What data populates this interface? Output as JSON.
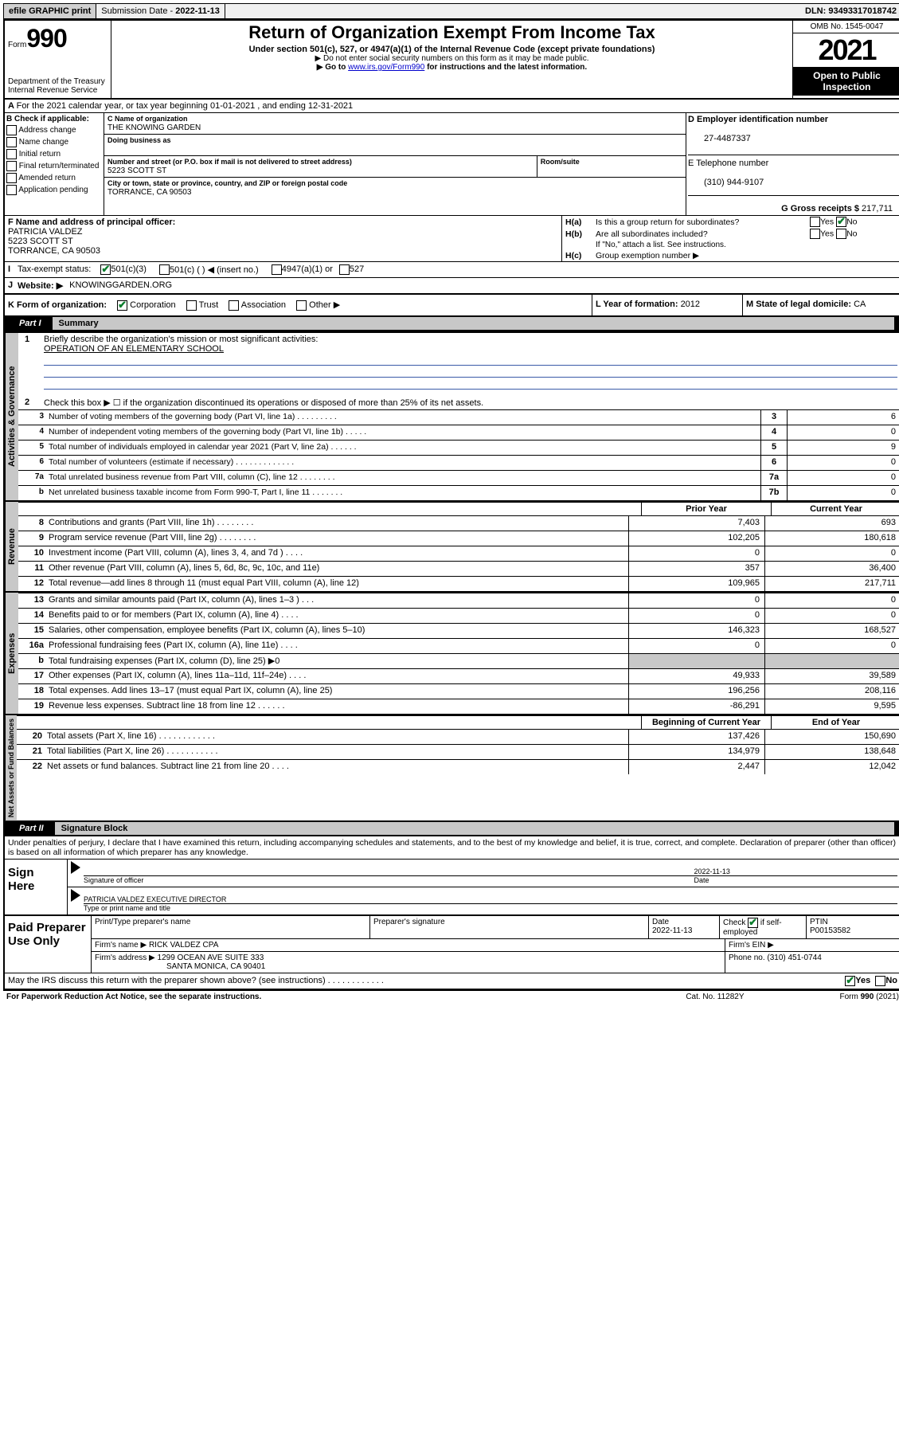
{
  "topbar": {
    "efile": "efile GRAPHIC print",
    "subm_lbl": "Submission Date - ",
    "subm_date": "2022-11-13",
    "dln_lbl": "DLN: ",
    "dln": "93493317018742"
  },
  "header": {
    "form_word": "Form",
    "form_num": "990",
    "dept": "Department of the Treasury Internal Revenue Service",
    "title": "Return of Organization Exempt From Income Tax",
    "sub1": "Under section 501(c), 527, or 4947(a)(1) of the Internal Revenue Code (except private foundations)",
    "sub2": "▶ Do not enter social security numbers on this form as it may be made public.",
    "sub3_a": "▶ Go to ",
    "sub3_link": "www.irs.gov/Form990",
    "sub3_b": " for instructions and the latest information.",
    "omb": "OMB No. 1545-0047",
    "year": "2021",
    "open": "Open to Public Inspection"
  },
  "A": {
    "text": "For the 2021 calendar year, or tax year beginning 01-01-2021   , and ending 12-31-2021"
  },
  "B": {
    "lbl": "B Check if applicable:",
    "opts": [
      "Address change",
      "Name change",
      "Initial return",
      "Final return/terminated",
      "Amended return",
      "Application pending"
    ]
  },
  "C": {
    "name_lbl": "C Name of organization",
    "name": "THE KNOWING GARDEN",
    "dba_lbl": "Doing business as",
    "addr_lbl": "Number and street (or P.O. box if mail is not delivered to street address)",
    "room_lbl": "Room/suite",
    "addr": "5223 SCOTT ST",
    "city_lbl": "City or town, state or province, country, and ZIP or foreign postal code",
    "city": "TORRANCE, CA  90503"
  },
  "D": {
    "lbl": "D Employer identification number",
    "val": "27-4487337"
  },
  "E": {
    "lbl": "E Telephone number",
    "val": "(310) 944-9107"
  },
  "G": {
    "lbl": "G Gross receipts $ ",
    "val": "217,711"
  },
  "F": {
    "lbl": "F  Name and address of principal officer:",
    "name": "PATRICIA VALDEZ",
    "addr1": "5223 SCOTT ST",
    "addr2": "TORRANCE, CA  90503"
  },
  "H": {
    "a": "Is this a group return for subordinates?",
    "b": "Are all subordinates included?",
    "b_note": "If \"No,\" attach a list. See instructions.",
    "c": "Group exemption number ▶",
    "yes": "Yes",
    "no": "No"
  },
  "I": {
    "lbl": "Tax-exempt status:",
    "o1": "501(c)(3)",
    "o2": "501(c) (  ) ◀ (insert no.)",
    "o3": "4947(a)(1) or",
    "o4": "527"
  },
  "J": {
    "lbl": "Website: ▶",
    "val": "KNOWINGGARDEN.ORG"
  },
  "K": {
    "lbl": "K Form of organization:",
    "o1": "Corporation",
    "o2": "Trust",
    "o3": "Association",
    "o4": "Other ▶"
  },
  "L": {
    "lbl": "L Year of formation: ",
    "val": "2012"
  },
  "M": {
    "lbl": "M State of legal domicile: ",
    "val": "CA"
  },
  "partI": {
    "num": "Part I",
    "title": "Summary"
  },
  "summary": {
    "q1": "Briefly describe the organization's mission or most significant activities:",
    "q1v": "OPERATION OF AN ELEMENTARY SCHOOL",
    "q2": "Check this box ▶ ☐  if the organization discontinued its operations or disposed of more than 25% of its net assets.",
    "lines": [
      {
        "n": "3",
        "t": "Number of voting members of the governing body (Part VI, line 1a)  .   .   .   .   .   .   .   .   .",
        "k": "3",
        "v": "6"
      },
      {
        "n": "4",
        "t": "Number of independent voting members of the governing body (Part VI, line 1b)   .   .   .   .   .",
        "k": "4",
        "v": "0"
      },
      {
        "n": "5",
        "t": "Total number of individuals employed in calendar year 2021 (Part V, line 2a)   .   .   .   .   .   .",
        "k": "5",
        "v": "9"
      },
      {
        "n": "6",
        "t": "Total number of volunteers (estimate if necessary)   .   .   .   .   .   .   .   .   .   .   .   .   .",
        "k": "6",
        "v": "0"
      },
      {
        "n": "7a",
        "t": "Total unrelated business revenue from Part VIII, column (C), line 12   .   .   .   .   .   .   .   .",
        "k": "7a",
        "v": "0"
      },
      {
        "n": "b",
        "t": "Net unrelated business taxable income from Form 990-T, Part I, line 11   .   .   .   .   .   .   .",
        "k": "7b",
        "v": "0"
      }
    ]
  },
  "cols": {
    "prior": "Prior Year",
    "curr": "Current Year",
    "boc": "Beginning of Current Year",
    "eoy": "End of Year"
  },
  "rev": [
    {
      "n": "8",
      "t": "Contributions and grants (Part VIII, line 1h)   .   .   .   .   .   .   .   .",
      "p": "7,403",
      "c": "693"
    },
    {
      "n": "9",
      "t": "Program service revenue (Part VIII, line 2g)   .   .   .   .   .   .   .   .",
      "p": "102,205",
      "c": "180,618"
    },
    {
      "n": "10",
      "t": "Investment income (Part VIII, column (A), lines 3, 4, and 7d )   .   .   .   .",
      "p": "0",
      "c": "0"
    },
    {
      "n": "11",
      "t": "Other revenue (Part VIII, column (A), lines 5, 6d, 8c, 9c, 10c, and 11e)",
      "p": "357",
      "c": "36,400"
    },
    {
      "n": "12",
      "t": "Total revenue—add lines 8 through 11 (must equal Part VIII, column (A), line 12)",
      "p": "109,965",
      "c": "217,711"
    }
  ],
  "exp": [
    {
      "n": "13",
      "t": "Grants and similar amounts paid (Part IX, column (A), lines 1–3 )   .   .   .",
      "p": "0",
      "c": "0"
    },
    {
      "n": "14",
      "t": "Benefits paid to or for members (Part IX, column (A), line 4)   .   .   .   .",
      "p": "0",
      "c": "0"
    },
    {
      "n": "15",
      "t": "Salaries, other compensation, employee benefits (Part IX, column (A), lines 5–10)",
      "p": "146,323",
      "c": "168,527"
    },
    {
      "n": "16a",
      "t": "Professional fundraising fees (Part IX, column (A), line 11e)   .   .   .   .",
      "p": "0",
      "c": "0"
    },
    {
      "n": "b",
      "t": "Total fundraising expenses (Part IX, column (D), line 25) ▶0",
      "p": "",
      "c": "",
      "shade": true
    },
    {
      "n": "17",
      "t": "Other expenses (Part IX, column (A), lines 11a–11d, 11f–24e)   .   .   .   .",
      "p": "49,933",
      "c": "39,589"
    },
    {
      "n": "18",
      "t": "Total expenses. Add lines 13–17 (must equal Part IX, column (A), line 25)",
      "p": "196,256",
      "c": "208,116"
    },
    {
      "n": "19",
      "t": "Revenue less expenses. Subtract line 18 from line 12   .   .   .   .   .   .",
      "p": "-86,291",
      "c": "9,595"
    }
  ],
  "net": [
    {
      "n": "20",
      "t": "Total assets (Part X, line 16)   .   .   .   .   .   .   .   .   .   .   .   .",
      "p": "137,426",
      "c": "150,690"
    },
    {
      "n": "21",
      "t": "Total liabilities (Part X, line 26)   .   .   .   .   .   .   .   .   .   .   .",
      "p": "134,979",
      "c": "138,648"
    },
    {
      "n": "22",
      "t": "Net assets or fund balances. Subtract line 21 from line 20   .   .   .   .",
      "p": "2,447",
      "c": "12,042"
    }
  ],
  "sidelbl": {
    "gov": "Activities & Governance",
    "rev": "Revenue",
    "exp": "Expenses",
    "net": "Net Assets or Fund Balances"
  },
  "partII": {
    "num": "Part II",
    "title": "Signature Block"
  },
  "sig": {
    "decl": "Under penalties of perjury, I declare that I have examined this return, including accompanying schedules and statements, and to the best of my knowledge and belief, it is true, correct, and complete. Declaration of preparer (other than officer) is based on all information of which preparer has any knowledge.",
    "sign_here": "Sign Here",
    "sig_officer": "Signature of officer",
    "date_lbl": "Date",
    "date": "2022-11-13",
    "name": "PATRICIA VALDEZ  EXECUTIVE DIRECTOR",
    "name_lbl": "Type or print name and title"
  },
  "prep": {
    "lbl": "Paid Preparer Use Only",
    "h1": "Print/Type preparer's name",
    "h2": "Preparer's signature",
    "h3": "Date",
    "h3v": "2022-11-13",
    "h4": "Check        if self-employed",
    "h5": "PTIN",
    "h5v": "P00153582",
    "firm_lbl": "Firm's name    ▶ ",
    "firm": "RICK VALDEZ CPA",
    "ein_lbl": "Firm's EIN ▶",
    "addr_lbl": "Firm's address ▶ ",
    "addr1": "1299 OCEAN AVE SUITE 333",
    "addr2": "SANTA MONICA, CA  90401",
    "phone_lbl": "Phone no. ",
    "phone": "(310) 451-0744",
    "discuss": "May the IRS discuss this return with the preparer shown above? (see instructions)   .   .   .   .   .   .   .   .   .   .   .   ."
  },
  "footer": {
    "l": "For Paperwork Reduction Act Notice, see the separate instructions.",
    "m": "Cat. No. 11282Y",
    "r": "Form 990 (2021)"
  }
}
